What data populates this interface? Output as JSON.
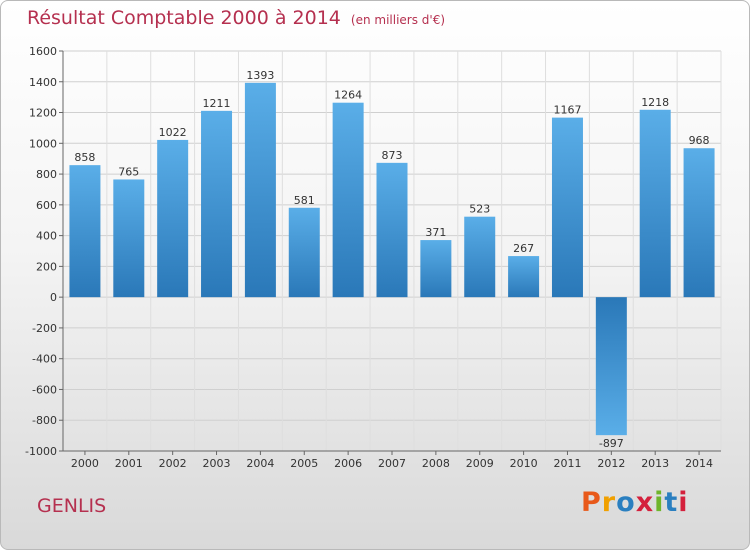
{
  "header": {
    "title": "Résultat Comptable 2000 à 2014",
    "subtitle": "(en milliers d'€)"
  },
  "footer": {
    "city": "GENLIS",
    "brand": "Proxiti",
    "brand_colors": [
      "#e8591a",
      "#f0a000",
      "#2a7fc0",
      "#d4203c",
      "#6fb52c",
      "#2a7fc0",
      "#d4203c"
    ]
  },
  "colors": {
    "bar_light": "#5aaee8",
    "bar_dark": "#2a78b8",
    "text_red": "#b5304f"
  },
  "chart_data": {
    "type": "bar",
    "title": "Résultat Comptable 2000 à 2014",
    "subtitle": "(en milliers d'€)",
    "categories": [
      "2000",
      "2001",
      "2002",
      "2003",
      "2004",
      "2005",
      "2006",
      "2007",
      "2008",
      "2009",
      "2010",
      "2011",
      "2012",
      "2013",
      "2014"
    ],
    "values": [
      858,
      765,
      1022,
      1211,
      1393,
      581,
      1264,
      873,
      371,
      523,
      267,
      1167,
      -897,
      1218,
      968
    ],
    "ylim": [
      -1000,
      1600
    ],
    "yticks": [
      1600,
      1400,
      1200,
      1000,
      800,
      600,
      400,
      200,
      0,
      -200,
      -400,
      -600,
      -800,
      -1000
    ],
    "grid": true,
    "legend": "none"
  }
}
